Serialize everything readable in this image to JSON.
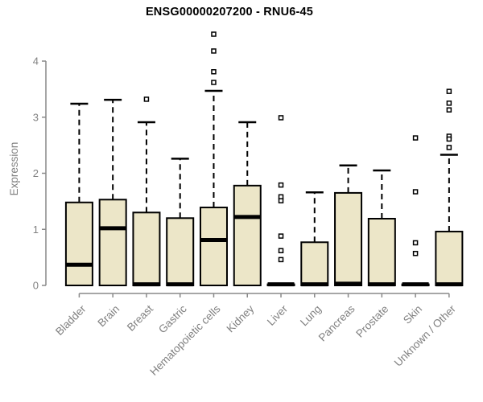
{
  "chart_data": {
    "type": "boxplot",
    "title": "ENSG00000207200 - RNU6-45",
    "ylabel": "Expression",
    "xlabel": "",
    "yticks": [
      0,
      1,
      2,
      3,
      4
    ],
    "ylim": [
      -0.15,
      4.6
    ],
    "grid": false,
    "legend": "none",
    "categories": [
      "Bladder",
      "Brain",
      "Breast",
      "Gastric",
      "Hematopoietic cells",
      "Kidney",
      "Liver",
      "Lung",
      "Pancreas",
      "Prostate",
      "Skin",
      "Unknown / Other"
    ],
    "boxes": [
      {
        "category": "Bladder",
        "whisker_low": 0,
        "q1": 0,
        "median": 0.37,
        "q3": 1.48,
        "whisker_high": 3.24,
        "outliers": []
      },
      {
        "category": "Brain",
        "whisker_low": 0,
        "q1": 0,
        "median": 1.02,
        "q3": 1.53,
        "whisker_high": 3.31,
        "outliers": []
      },
      {
        "category": "Breast",
        "whisker_low": 0,
        "q1": 0,
        "median": 0.02,
        "q3": 1.3,
        "whisker_high": 2.91,
        "outliers": [
          3.32
        ]
      },
      {
        "category": "Gastric",
        "whisker_low": 0,
        "q1": 0,
        "median": 0.02,
        "q3": 1.2,
        "whisker_high": 2.26,
        "outliers": []
      },
      {
        "category": "Hematopoietic cells",
        "whisker_low": 0,
        "q1": 0,
        "median": 0.81,
        "q3": 1.39,
        "whisker_high": 3.47,
        "outliers": [
          4.48,
          4.18,
          3.81,
          3.62
        ]
      },
      {
        "category": "Kidney",
        "whisker_low": 0,
        "q1": 0,
        "median": 1.22,
        "q3": 1.78,
        "whisker_high": 2.91,
        "outliers": []
      },
      {
        "category": "Liver",
        "whisker_low": 0,
        "q1": 0,
        "median": 0.02,
        "q3": 0.02,
        "whisker_high": 0.02,
        "outliers": [
          2.99,
          1.79,
          1.58,
          1.51,
          0.88,
          0.62,
          0.46
        ]
      },
      {
        "category": "Lung",
        "whisker_low": 0,
        "q1": 0,
        "median": 0.02,
        "q3": 0.77,
        "whisker_high": 1.66,
        "outliers": []
      },
      {
        "category": "Pancreas",
        "whisker_low": 0,
        "q1": 0,
        "median": 0.03,
        "q3": 1.65,
        "whisker_high": 2.14,
        "outliers": []
      },
      {
        "category": "Prostate",
        "whisker_low": 0,
        "q1": 0,
        "median": 0.02,
        "q3": 1.19,
        "whisker_high": 2.05,
        "outliers": []
      },
      {
        "category": "Skin",
        "whisker_low": 0,
        "q1": 0,
        "median": 0.02,
        "q3": 0.02,
        "whisker_high": 0.02,
        "outliers": [
          2.63,
          1.67,
          0.76,
          0.57
        ]
      },
      {
        "category": "Unknown / Other",
        "whisker_low": 0,
        "q1": 0,
        "median": 0.02,
        "q3": 0.96,
        "whisker_high": 2.33,
        "outliers": [
          3.46,
          3.25,
          3.13,
          2.66,
          2.61,
          2.46
        ]
      }
    ],
    "style": {
      "box_fill": "#ECE6C8",
      "box_border": "#000000",
      "median_color": "#000000",
      "whisker_color": "#000000",
      "outlier_shape": "open-square",
      "axis_color": "#898989",
      "tick_label_color": "#808080",
      "title_color": "#000000",
      "background": "#FFFFFF"
    }
  }
}
